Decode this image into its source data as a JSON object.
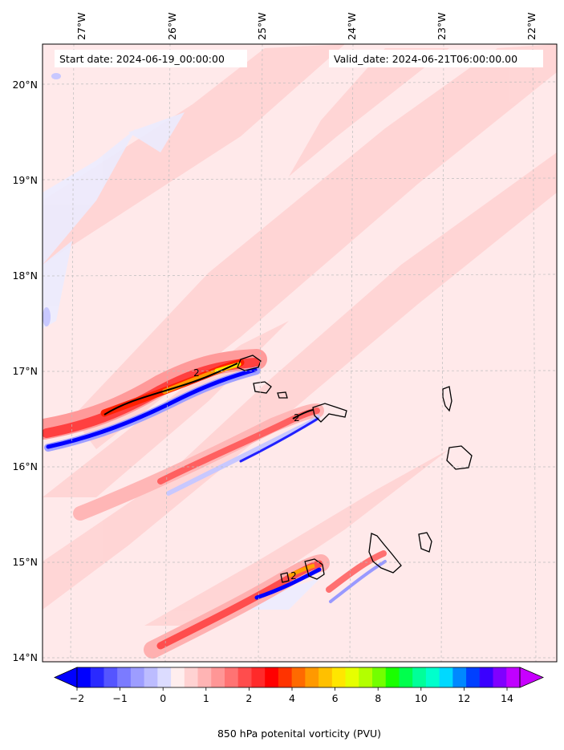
{
  "map": {
    "start_date": "Start date: 2024-06-19_00:00:00",
    "valid_date": "Valid_date: 2024-06-21T06:00:00.00",
    "lon_labels": [
      "27°W",
      "26°W",
      "25°W",
      "24°W",
      "23°W",
      "22°W"
    ],
    "lat_labels": [
      "20°N",
      "19°N",
      "18°N",
      "17°N",
      "16°N",
      "15°N",
      "14°N"
    ],
    "contour_label": "2"
  },
  "colorbar": {
    "tick_labels": [
      "−2",
      "−1",
      "0",
      "1",
      "2",
      "4",
      "6",
      "8",
      "10",
      "12",
      "14"
    ],
    "label": "850 hPa potenital vorticity (PVU)",
    "colors": [
      "#0000ff",
      "#2a2aff",
      "#5555ff",
      "#7b7bff",
      "#9d9dff",
      "#bcbcff",
      "#dcdcff",
      "#ffeeee",
      "#ffd2d2",
      "#ffb4b4",
      "#ff9696",
      "#ff7373",
      "#ff4d4d",
      "#ff2a2a",
      "#ff0000",
      "#ff3300",
      "#ff6a00",
      "#ff9900",
      "#ffc000",
      "#ffe600",
      "#e6ff00",
      "#b3ff00",
      "#73ff00",
      "#1aff00",
      "#00ff4d",
      "#00ff99",
      "#00ffcc",
      "#00d9ff",
      "#0088ff",
      "#0040ff",
      "#3a00ff",
      "#8000ff",
      "#c000ff"
    ],
    "under_color": "#0000ff",
    "over_color": "#c800ff"
  }
}
